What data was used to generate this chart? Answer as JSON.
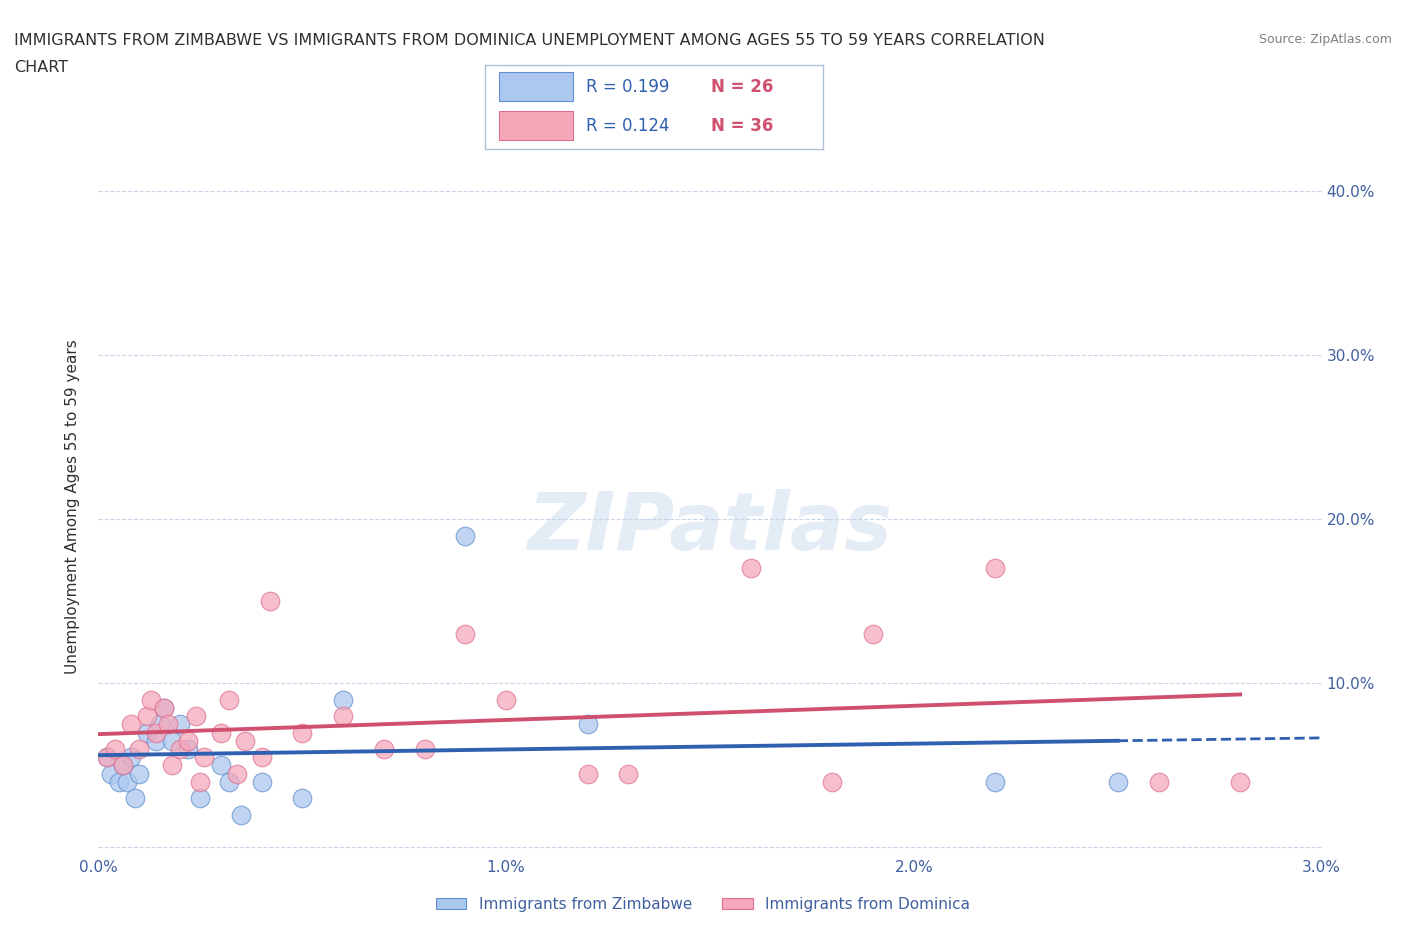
{
  "title_line1": "IMMIGRANTS FROM ZIMBABWE VS IMMIGRANTS FROM DOMINICA UNEMPLOYMENT AMONG AGES 55 TO 59 YEARS CORRELATION",
  "title_line2": "CHART",
  "source": "Source: ZipAtlas.com",
  "ylabel": "Unemployment Among Ages 55 to 59 years",
  "watermark": "ZIPatlas",
  "xlim": [
    0.0,
    0.03
  ],
  "ylim": [
    -0.005,
    0.42
  ],
  "xticks": [
    0.0,
    0.01,
    0.02,
    0.03
  ],
  "xtick_labels": [
    "0.0%",
    "1.0%",
    "2.0%",
    "3.0%"
  ],
  "yticks": [
    0.0,
    0.1,
    0.2,
    0.3,
    0.4
  ],
  "right_ytick_labels": [
    "",
    "10.0%",
    "20.0%",
    "30.0%",
    "40.0%"
  ],
  "zimbabwe_R": 0.199,
  "zimbabwe_N": 26,
  "dominica_R": 0.124,
  "dominica_N": 36,
  "zimbabwe_color": "#adc8f0",
  "dominica_color": "#f5a8ba",
  "zimbabwe_edge_color": "#6090d0",
  "dominica_edge_color": "#e07090",
  "zimbabwe_line_color": "#3060b0",
  "dominica_line_color": "#d05070",
  "zimbabwe_x": [
    0.0002,
    0.0003,
    0.0005,
    0.0006,
    0.0007,
    0.0008,
    0.0009,
    0.001,
    0.0012,
    0.0014,
    0.0015,
    0.0016,
    0.0018,
    0.002,
    0.0022,
    0.0025,
    0.003,
    0.0032,
    0.0035,
    0.004,
    0.005,
    0.006,
    0.009,
    0.012,
    0.022,
    0.025
  ],
  "zimbabwe_y": [
    0.055,
    0.045,
    0.04,
    0.05,
    0.04,
    0.055,
    0.03,
    0.045,
    0.07,
    0.065,
    0.075,
    0.085,
    0.065,
    0.075,
    0.06,
    0.03,
    0.05,
    0.04,
    0.02,
    0.04,
    0.03,
    0.09,
    0.19,
    0.075,
    0.04,
    0.04
  ],
  "dominica_x": [
    0.0002,
    0.0004,
    0.0006,
    0.0008,
    0.001,
    0.0012,
    0.0013,
    0.0014,
    0.0016,
    0.0017,
    0.0018,
    0.002,
    0.0022,
    0.0024,
    0.0025,
    0.0026,
    0.003,
    0.0032,
    0.0034,
    0.0036,
    0.004,
    0.0042,
    0.005,
    0.006,
    0.007,
    0.008,
    0.009,
    0.01,
    0.012,
    0.013,
    0.016,
    0.018,
    0.019,
    0.022,
    0.026,
    0.028
  ],
  "dominica_y": [
    0.055,
    0.06,
    0.05,
    0.075,
    0.06,
    0.08,
    0.09,
    0.07,
    0.085,
    0.075,
    0.05,
    0.06,
    0.065,
    0.08,
    0.04,
    0.055,
    0.07,
    0.09,
    0.045,
    0.065,
    0.055,
    0.15,
    0.07,
    0.08,
    0.06,
    0.06,
    0.13,
    0.09,
    0.045,
    0.045,
    0.17,
    0.04,
    0.13,
    0.17,
    0.04,
    0.04
  ],
  "background_color": "#ffffff",
  "grid_color": "#c8d4e8",
  "title_color": "#303030",
  "axis_label_color": "#303030",
  "tick_color": "#4060a0",
  "legend_r_color": "#3060b0",
  "legend_n_color": "#d05070"
}
